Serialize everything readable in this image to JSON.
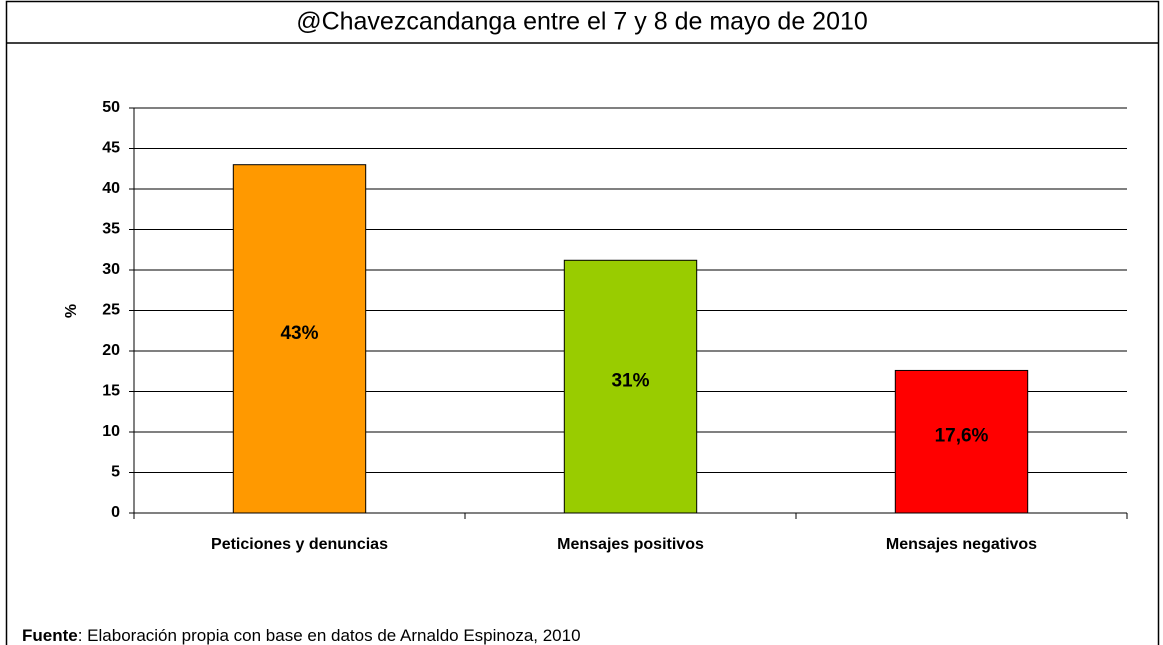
{
  "chart_data": {
    "type": "bar",
    "title": "@Chavezcandanga entre el 7 y 8 de mayo de 2010",
    "ylabel": "%",
    "categories": [
      "Peticiones y denuncias",
      "Mensajes positivos",
      "Mensajes negativos"
    ],
    "values": [
      43,
      31.2,
      17.6
    ],
    "value_labels": [
      "43%",
      "31%",
      "17,6%"
    ],
    "colors": [
      "#ff9900",
      "#99cc00",
      "#ff0000"
    ],
    "ylim": [
      0,
      50
    ],
    "yticks": [
      0,
      5,
      10,
      15,
      20,
      25,
      30,
      35,
      40,
      45,
      50
    ],
    "grid": true,
    "source_label": "Fuente",
    "source_text": ": Elaboración propia con base en datos de Arnaldo Espinoza, 2010"
  }
}
